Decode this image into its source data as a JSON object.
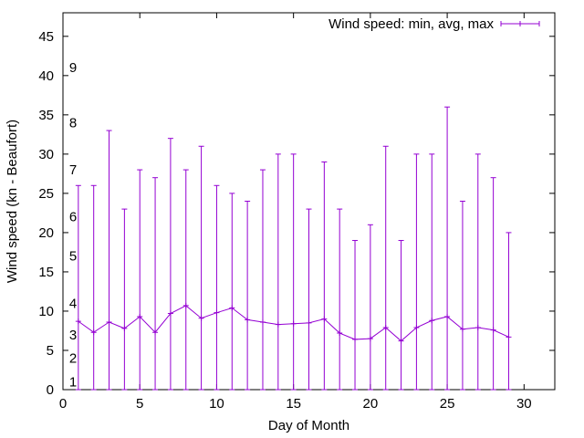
{
  "chart_data": {
    "type": "line",
    "title": "",
    "xlabel": "Day of Month",
    "ylabel": "Wind speed (kn - Beaufort)",
    "xlim": [
      0,
      32
    ],
    "ylim": [
      0,
      48
    ],
    "xticks": [
      0,
      5,
      10,
      15,
      20,
      25,
      30
    ],
    "yticks": [
      0,
      5,
      10,
      15,
      20,
      25,
      30,
      35,
      40,
      45
    ],
    "beaufort_labels": [
      {
        "label": "1",
        "value": 1
      },
      {
        "label": "2",
        "value": 4
      },
      {
        "label": "3",
        "value": 7
      },
      {
        "label": "4",
        "value": 11
      },
      {
        "label": "5",
        "value": 17
      },
      {
        "label": "6",
        "value": 22
      },
      {
        "label": "7",
        "value": 28
      },
      {
        "label": "8",
        "value": 34
      },
      {
        "label": "9",
        "value": 41
      }
    ],
    "legend": {
      "label": "Wind speed: min, avg, max",
      "placement": "top-right"
    },
    "grid": false,
    "series_color": "#9400d3",
    "series": [
      {
        "name": "Wind speed: min, avg, max",
        "x": [
          1,
          2,
          3,
          4,
          5,
          6,
          7,
          8,
          9,
          10,
          11,
          12,
          13,
          14,
          15,
          16,
          17,
          18,
          19,
          20,
          21,
          22,
          23,
          24,
          25,
          26,
          27,
          28,
          29
        ],
        "min": [
          0,
          0,
          0,
          0,
          0,
          0,
          0,
          0,
          0,
          0,
          0,
          0,
          0,
          0,
          0,
          0,
          0,
          0,
          0,
          0,
          0,
          0,
          0,
          0,
          0,
          0,
          0,
          0,
          0
        ],
        "avg": [
          8.7,
          7.3,
          8.6,
          7.8,
          9.3,
          7.3,
          9.7,
          10.7,
          9.1,
          9.8,
          10.4,
          8.9,
          8.6,
          8.3,
          8.4,
          8.5,
          9.0,
          7.2,
          6.4,
          6.5,
          7.9,
          6.2,
          7.9,
          8.8,
          9.3,
          7.7,
          7.9,
          7.6,
          6.7
        ],
        "max": [
          26,
          26,
          33,
          23,
          28,
          27,
          32,
          28,
          31,
          26,
          25,
          24,
          28,
          30,
          30,
          23,
          29,
          23,
          19,
          21,
          31,
          19,
          30,
          30,
          36,
          24,
          30,
          27,
          20
        ]
      }
    ]
  }
}
